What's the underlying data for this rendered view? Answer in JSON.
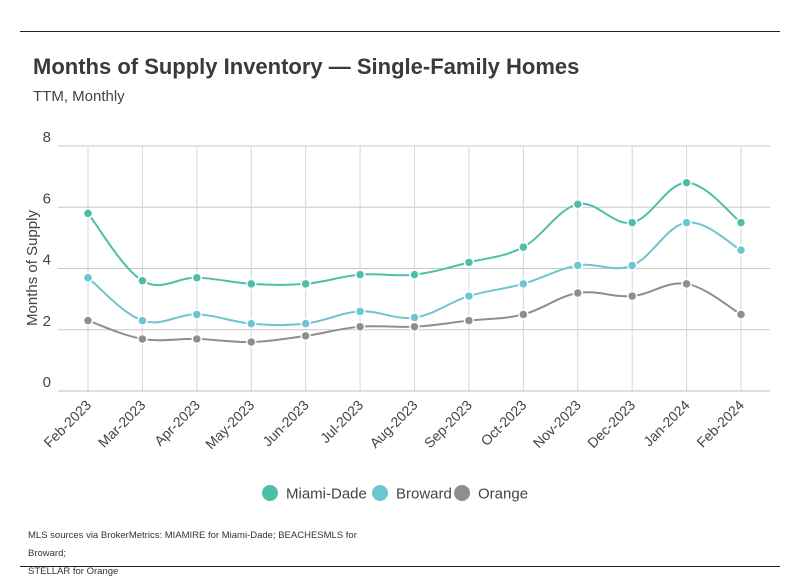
{
  "title": "Months of Supply Inventory — Single-Family Homes",
  "subtitle": "TTM, Monthly",
  "source": {
    "line1": "MLS sources via BrokerMetrics: MIAMIRE for Miami-Dade; BEACHESMLS for Broward;",
    "line2": "STELLAR for Orange"
  },
  "chart_data": {
    "type": "line",
    "title": "Months of Supply Inventory — Single-Family Homes",
    "subtitle": "TTM, Monthly",
    "xlabel": "",
    "ylabel": "Months of Supply",
    "ylim": [
      0,
      8
    ],
    "yticks": [
      0,
      2,
      4,
      6,
      8
    ],
    "grid": true,
    "smooth": true,
    "legend_position": "bottom-center",
    "categories": [
      "Feb-2023",
      "Mar-2023",
      "Apr-2023",
      "May-2023",
      "Jun-2023",
      "Jul-2023",
      "Aug-2023",
      "Sep-2023",
      "Oct-2023",
      "Nov-2023",
      "Dec-2023",
      "Jan-2024",
      "Feb-2024"
    ],
    "series": [
      {
        "name": "Miami-Dade",
        "color": "#4dbfa8",
        "values": [
          5.8,
          3.6,
          3.7,
          3.5,
          3.5,
          3.8,
          3.8,
          4.2,
          4.7,
          6.1,
          5.5,
          6.8,
          5.5
        ]
      },
      {
        "name": "Broward",
        "color": "#6cc5cf",
        "values": [
          3.7,
          2.3,
          2.5,
          2.2,
          2.2,
          2.6,
          2.4,
          3.1,
          3.5,
          4.1,
          4.1,
          5.5,
          4.6
        ]
      },
      {
        "name": "Orange",
        "color": "#8e8e8e",
        "values": [
          2.3,
          1.7,
          1.7,
          1.6,
          1.8,
          2.1,
          2.1,
          2.3,
          2.5,
          3.2,
          3.1,
          3.5,
          2.5
        ]
      }
    ]
  }
}
